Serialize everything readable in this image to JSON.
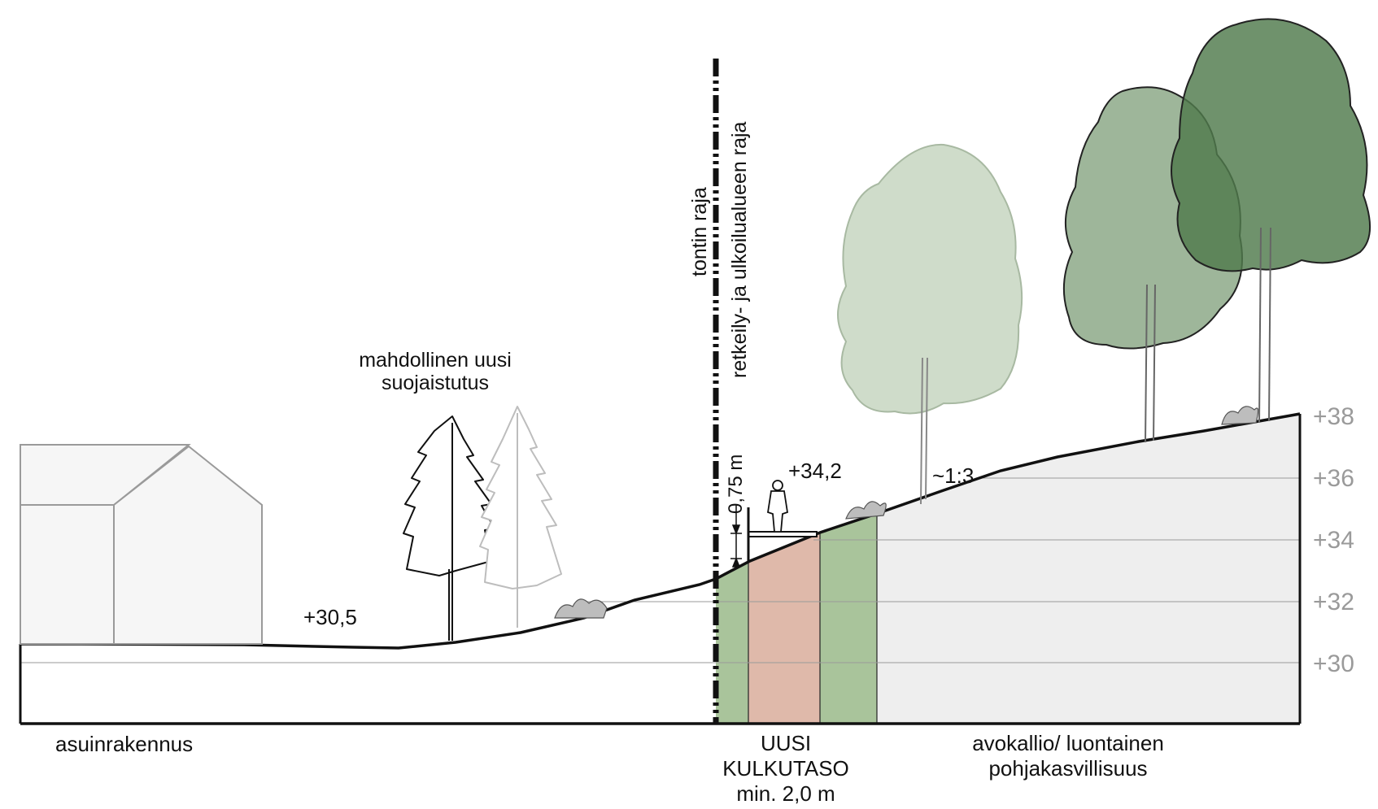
{
  "labels": {
    "plot_boundary": "tontin raja",
    "recreation_boundary": "retkeily- ja ulkoilualueen raja",
    "screen_planting_line1": "mahdollinen uusi",
    "screen_planting_line2": "suojaistutus",
    "residential": "asuinrakennus",
    "walkway_line1": "UUSI",
    "walkway_line2": "KULKUTASO",
    "walkway_line3": "min. 2,0 m",
    "rock_line1": "avokallio/ luontainen",
    "rock_line2": "pohjakasvillisuus",
    "slope": "~1:3",
    "level_left": "+30,5",
    "level_walkway": "+34,2",
    "height_dim": "0,75 m"
  },
  "elevation_scale": [
    "+38",
    "+36",
    "+34",
    "+32",
    "+30"
  ],
  "colors": {
    "walkway_edge_green": "#a9c49b",
    "walkway_center_pink": "#dfb9aa",
    "terrain_fill_grey": "#eeeeee",
    "tree_light": "#cfdcca",
    "tree_mid": "#7d9e78",
    "tree_dark": "#4f7a4c"
  },
  "icons": [
    "house-icon",
    "spruce-tree-icon",
    "deciduous-tree-icon",
    "person-icon",
    "shrub-icon"
  ]
}
